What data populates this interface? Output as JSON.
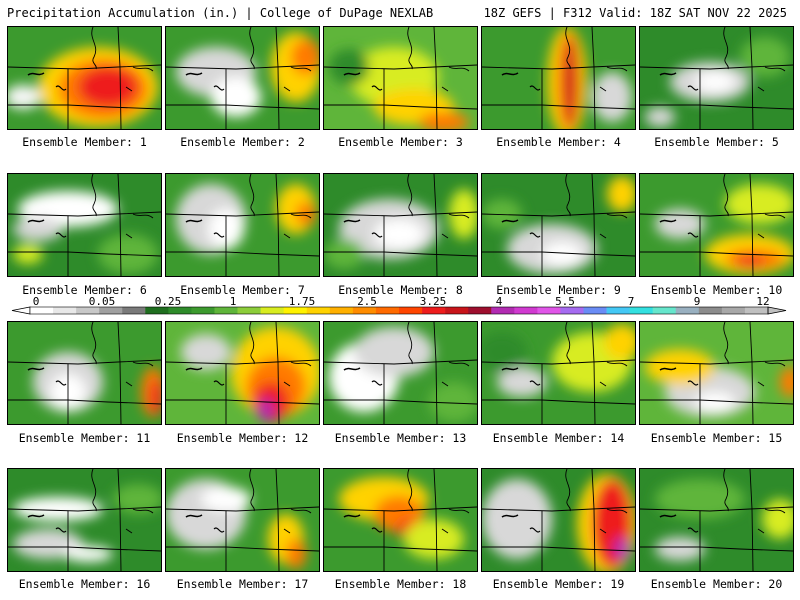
{
  "header": {
    "left": "Precipitation Accumulation (in.) | College of DuPage NEXLAB",
    "right": "18Z GEFS | F312 Valid: 18Z SAT NOV 22 2025"
  },
  "member_label_prefix": "Ensemble Member:",
  "members": [
    {
      "label": "Ensemble Member: 1",
      "base": "#3c9a2e",
      "blobs": [
        [
          "#ffd200",
          90,
          60,
          60,
          40
        ],
        [
          "#ff7a00",
          95,
          62,
          45,
          30
        ],
        [
          "#ee1c1c",
          100,
          60,
          30,
          20
        ],
        [
          "#f7f7f7",
          15,
          70,
          18,
          12
        ]
      ]
    },
    {
      "label": "Ensemble Member: 2",
      "base": "#3c9a2e",
      "blobs": [
        [
          "#d8d8d8",
          50,
          45,
          40,
          25
        ],
        [
          "#ffffff",
          70,
          70,
          25,
          20
        ],
        [
          "#ffd200",
          130,
          40,
          25,
          35
        ],
        [
          "#ff7a00",
          140,
          30,
          15,
          18
        ]
      ]
    },
    {
      "label": "Ensemble Member: 3",
      "base": "#5fb53a",
      "blobs": [
        [
          "#d8ec20",
          70,
          50,
          45,
          30
        ],
        [
          "#ffd200",
          90,
          80,
          40,
          18
        ],
        [
          "#ff7a00",
          120,
          95,
          25,
          10
        ],
        [
          "#2e8b2a",
          25,
          40,
          20,
          18
        ]
      ]
    },
    {
      "label": "Ensemble Member: 4",
      "base": "#3c9a2e",
      "blobs": [
        [
          "#ffd200",
          85,
          55,
          20,
          55
        ],
        [
          "#ff7a00",
          87,
          55,
          12,
          50
        ],
        [
          "#c8141a",
          88,
          55,
          6,
          45
        ],
        [
          "#d8d8d8",
          130,
          70,
          20,
          25
        ]
      ]
    },
    {
      "label": "Ensemble Member: 5",
      "base": "#2e8b2a",
      "blobs": [
        [
          "#d8d8d8",
          70,
          55,
          40,
          20
        ],
        [
          "#ffffff",
          75,
          55,
          20,
          10
        ],
        [
          "#5fb53a",
          125,
          30,
          25,
          20
        ],
        [
          "#d8d8d8",
          20,
          90,
          15,
          10
        ]
      ]
    },
    {
      "label": "Ensemble Member: 6",
      "base": "#2e8b2a",
      "blobs": [
        [
          "#ffffff",
          60,
          35,
          50,
          18
        ],
        [
          "#d8d8d8",
          30,
          55,
          25,
          12
        ],
        [
          "#5fb53a",
          120,
          80,
          30,
          20
        ],
        [
          "#d8ec20",
          20,
          80,
          15,
          10
        ]
      ]
    },
    {
      "label": "Ensemble Member: 7",
      "base": "#3c9a2e",
      "blobs": [
        [
          "#d8d8d8",
          45,
          45,
          35,
          35
        ],
        [
          "#ffffff",
          60,
          55,
          18,
          20
        ],
        [
          "#ffd200",
          130,
          35,
          20,
          25
        ],
        [
          "#ff7a00",
          140,
          40,
          10,
          12
        ]
      ]
    },
    {
      "label": "Ensemble Member: 8",
      "base": "#2e8b2a",
      "blobs": [
        [
          "#d8d8d8",
          65,
          55,
          50,
          30
        ],
        [
          "#ffffff",
          75,
          60,
          25,
          15
        ],
        [
          "#d8ec20",
          140,
          40,
          15,
          25
        ],
        [
          "#5fb53a",
          20,
          80,
          20,
          15
        ]
      ]
    },
    {
      "label": "Ensemble Member: 9",
      "base": "#2e8b2a",
      "blobs": [
        [
          "#d8d8d8",
          70,
          75,
          45,
          25
        ],
        [
          "#ffffff",
          80,
          80,
          20,
          12
        ],
        [
          "#ffd200",
          140,
          20,
          15,
          18
        ],
        [
          "#5fb53a",
          20,
          40,
          20,
          15
        ]
      ]
    },
    {
      "label": "Ensemble Member: 10",
      "base": "#3c9a2e",
      "blobs": [
        [
          "#ffd200",
          110,
          80,
          45,
          20
        ],
        [
          "#ff7a00",
          115,
          85,
          30,
          10
        ],
        [
          "#ee1c1c",
          110,
          88,
          15,
          6
        ],
        [
          "#d8d8d8",
          40,
          50,
          25,
          15
        ],
        [
          "#d8ec20",
          120,
          30,
          35,
          20
        ]
      ]
    },
    {
      "label": "Ensemble Member: 11",
      "base": "#3c9a2e",
      "blobs": [
        [
          "#d8d8d8",
          60,
          60,
          35,
          30
        ],
        [
          "#ffffff",
          60,
          70,
          18,
          18
        ],
        [
          "#ff7a00",
          145,
          70,
          12,
          25
        ],
        [
          "#ee1c1c",
          148,
          75,
          6,
          18
        ]
      ]
    },
    {
      "label": "Ensemble Member: 12",
      "base": "#5fb53a",
      "blobs": [
        [
          "#ffd200",
          110,
          50,
          45,
          45
        ],
        [
          "#ff7a00",
          110,
          65,
          30,
          30
        ],
        [
          "#ee1c1c",
          105,
          80,
          18,
          20
        ],
        [
          "#b22bb2",
          100,
          88,
          8,
          12
        ],
        [
          "#d8d8d8",
          40,
          30,
          25,
          18
        ]
      ]
    },
    {
      "label": "Ensemble Member: 13",
      "base": "#3c9a2e",
      "blobs": [
        [
          "#ffffff",
          40,
          55,
          35,
          35
        ],
        [
          "#d8d8d8",
          70,
          30,
          40,
          25
        ],
        [
          "#5fb53a",
          130,
          80,
          25,
          20
        ]
      ]
    },
    {
      "label": "Ensemble Member: 14",
      "base": "#3c9a2e",
      "blobs": [
        [
          "#d8ec20",
          110,
          40,
          40,
          30
        ],
        [
          "#ffd200",
          140,
          20,
          18,
          18
        ],
        [
          "#d8d8d8",
          40,
          60,
          25,
          15
        ],
        [
          "#2e8b2a",
          20,
          30,
          25,
          20
        ]
      ]
    },
    {
      "label": "Ensemble Member: 15",
      "base": "#5fb53a",
      "blobs": [
        [
          "#d8d8d8",
          70,
          70,
          45,
          25
        ],
        [
          "#ffffff",
          75,
          80,
          20,
          10
        ],
        [
          "#ffd200",
          40,
          45,
          35,
          18
        ],
        [
          "#ff7a00",
          150,
          60,
          10,
          15
        ]
      ]
    },
    {
      "label": "Ensemble Member: 16",
      "base": "#2e8b2a",
      "blobs": [
        [
          "#ffffff",
          50,
          40,
          45,
          12
        ],
        [
          "#d8d8d8",
          40,
          75,
          35,
          15
        ],
        [
          "#ffffff",
          80,
          85,
          25,
          8
        ],
        [
          "#5fb53a",
          130,
          30,
          25,
          15
        ]
      ]
    },
    {
      "label": "Ensemble Member: 17",
      "base": "#3c9a2e",
      "blobs": [
        [
          "#d8d8d8",
          40,
          45,
          40,
          35
        ],
        [
          "#ffffff",
          60,
          30,
          25,
          12
        ],
        [
          "#ffd200",
          120,
          70,
          18,
          25
        ],
        [
          "#ff7a00",
          130,
          85,
          10,
          15
        ]
      ]
    },
    {
      "label": "Ensemble Member: 18",
      "base": "#3c9a2e",
      "blobs": [
        [
          "#ffd200",
          60,
          30,
          45,
          22
        ],
        [
          "#ff7a00",
          75,
          45,
          25,
          18
        ],
        [
          "#ee1c1c",
          85,
          60,
          12,
          10
        ],
        [
          "#d8ec20",
          110,
          70,
          30,
          20
        ]
      ]
    },
    {
      "label": "Ensemble Member: 19",
      "base": "#2e8b2a",
      "blobs": [
        [
          "#d8d8d8",
          35,
          50,
          35,
          40
        ],
        [
          "#ffd200",
          125,
          55,
          30,
          50
        ],
        [
          "#ee1c1c",
          130,
          55,
          20,
          45
        ],
        [
          "#b22bb2",
          140,
          80,
          8,
          12
        ]
      ]
    },
    {
      "label": "Ensemble Member: 20",
      "base": "#2e8b2a",
      "blobs": [
        [
          "#5fb53a",
          60,
          30,
          45,
          20
        ],
        [
          "#d8d8d8",
          40,
          80,
          25,
          12
        ],
        [
          "#d8ec20",
          140,
          50,
          18,
          20
        ]
      ]
    }
  ],
  "colorbar": {
    "tick_labels": [
      "0",
      "0.05",
      "0.25",
      "1",
      "1.75",
      "2.5",
      "3.25",
      "4",
      "5.5",
      "7",
      "9",
      "12"
    ],
    "colors": [
      "#ffffff",
      "#e8e8e8",
      "#c8c8c8",
      "#a0a0a0",
      "#7a7a7a",
      "#1f6e1f",
      "#2e8b2a",
      "#3c9a2e",
      "#5fb53a",
      "#8ccd3a",
      "#d8ec20",
      "#fff200",
      "#ffd200",
      "#ffb000",
      "#ff8c00",
      "#ff6a00",
      "#ff4500",
      "#ee1c1c",
      "#c8141a",
      "#9e0f2e",
      "#b22bb2",
      "#d03ad0",
      "#e055e8",
      "#a56bf0",
      "#6a8cf5",
      "#44c8f5",
      "#33e0e0",
      "#66e6cc",
      "#99b0c0",
      "#8c8c8c",
      "#a8a8a8",
      "#c0c0c0"
    ]
  }
}
